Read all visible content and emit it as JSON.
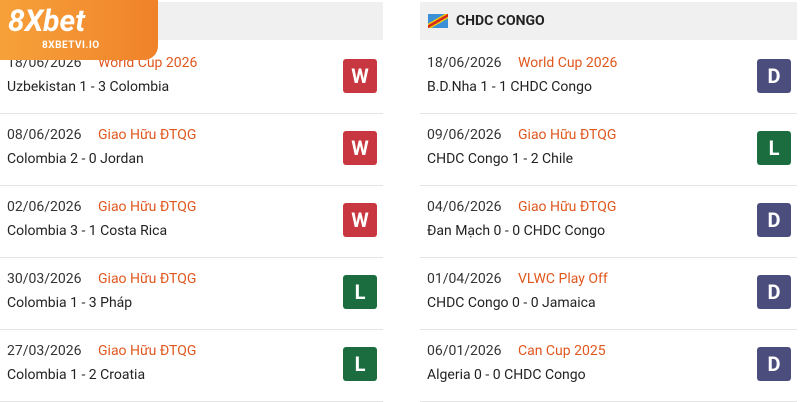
{
  "logo": {
    "brand": "8Xbet",
    "site": "8XBETVI.IO"
  },
  "left": {
    "matches": [
      {
        "date": "18/06/2026",
        "competition": "World Cup 2026",
        "score": "Uzbekistan 1 - 3 Colombia",
        "result": "W"
      },
      {
        "date": "08/06/2026",
        "competition": "Giao Hữu ĐTQG",
        "score": "Colombia 2 - 0 Jordan",
        "result": "W"
      },
      {
        "date": "02/06/2026",
        "competition": "Giao Hữu ĐTQG",
        "score": "Colombia 3 - 1 Costa Rica",
        "result": "W"
      },
      {
        "date": "30/03/2026",
        "competition": "Giao Hữu ĐTQG",
        "score": "Colombia 1 - 3 Pháp",
        "result": "L"
      },
      {
        "date": "27/03/2026",
        "competition": "Giao Hữu ĐTQG",
        "score": "Colombia 1 - 2 Croatia",
        "result": "L"
      }
    ]
  },
  "right": {
    "team": "CHDC CONGO",
    "matches": [
      {
        "date": "18/06/2026",
        "competition": "World Cup 2026",
        "score": "B.D.Nha 1 - 1 CHDC Congo",
        "result": "D"
      },
      {
        "date": "09/06/2026",
        "competition": "Giao Hữu ĐTQG",
        "score": "CHDC Congo 1 - 2 Chile",
        "result": "L"
      },
      {
        "date": "04/06/2026",
        "competition": "Giao Hữu ĐTQG",
        "score": "Đan Mạch 0 - 0 CHDC Congo",
        "result": "D"
      },
      {
        "date": "01/04/2026",
        "competition": "VLWC Play Off",
        "score": "CHDC Congo 0 - 0 Jamaica",
        "result": "D"
      },
      {
        "date": "06/01/2026",
        "competition": "Can Cup 2025",
        "score": "Algeria 0 - 0 CHDC Congo",
        "result": "D"
      }
    ]
  }
}
